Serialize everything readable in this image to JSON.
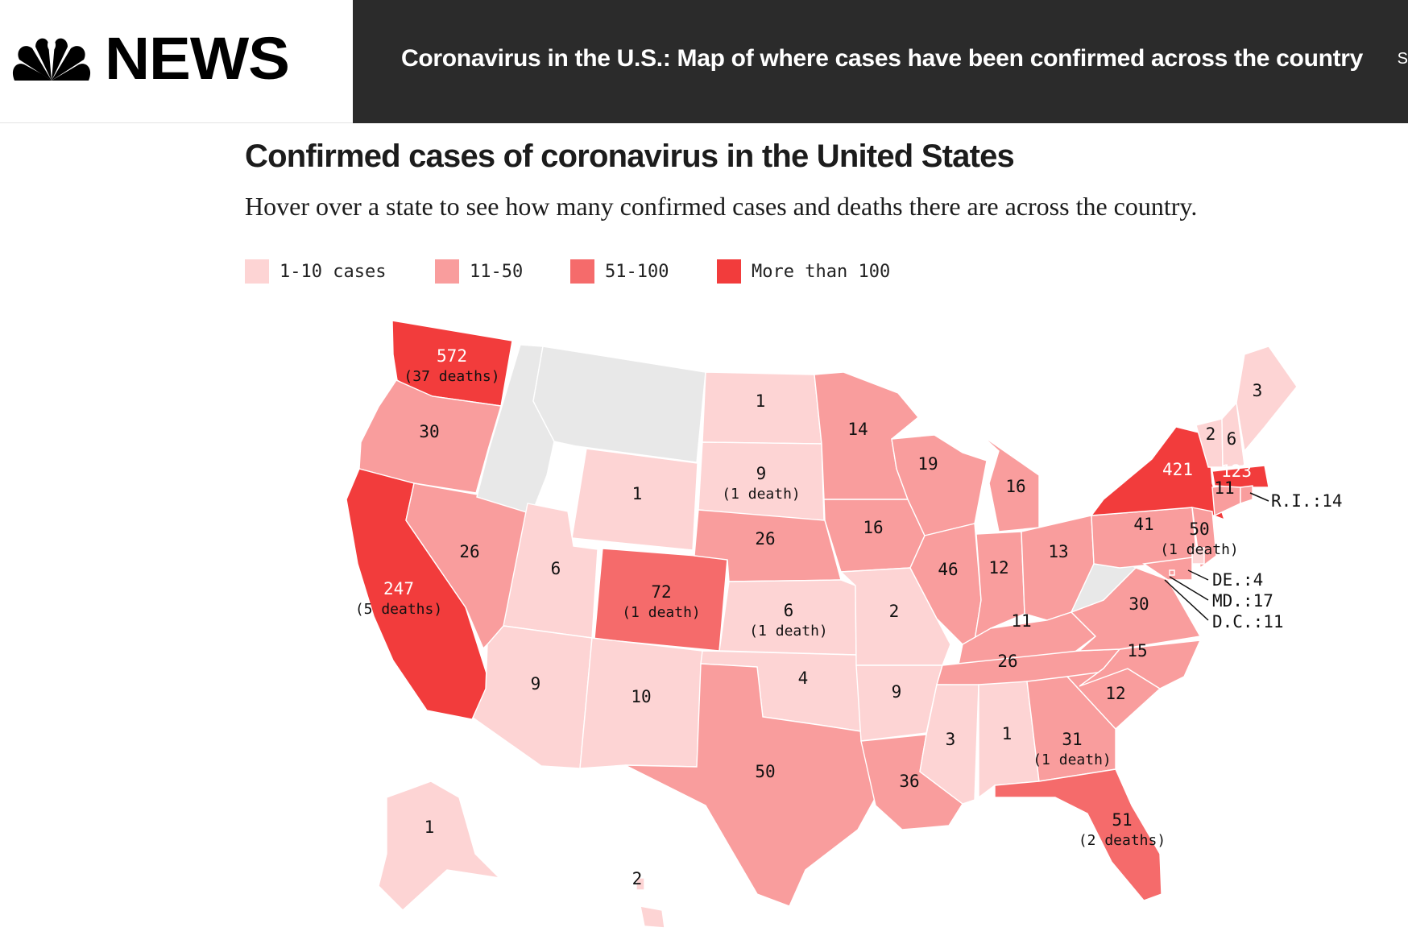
{
  "header": {
    "logo_text": "NEWS",
    "headline": "Coronavirus in the U.S.: Map of where cases have been confirmed across the country",
    "edge_letter": "S"
  },
  "title": "Confirmed cases of coronavirus in the United States",
  "subtitle": "Hover over a state to see how many confirmed cases and deaths there are across the country.",
  "legend": [
    {
      "label": "1-10 cases",
      "color": "#fdd4d4"
    },
    {
      "label": "11-50",
      "color": "#f99d9d"
    },
    {
      "label": "51-100",
      "color": "#f56b6b"
    },
    {
      "label": "More than 100",
      "color": "#f23c3c"
    }
  ],
  "colors": {
    "none": "#e8e8e8",
    "tier1": "#fdd4d4",
    "tier2": "#f99d9d",
    "tier3": "#f56b6b",
    "tier4": "#f23c3c",
    "border": "#ffffff",
    "header_dark": "#2b2b2b"
  },
  "states": [
    {
      "id": "WA",
      "cases": "572",
      "deaths": "(37 deaths)",
      "tier": 4
    },
    {
      "id": "OR",
      "cases": "30",
      "tier": 2
    },
    {
      "id": "CA",
      "cases": "247",
      "deaths": "(5 deaths)",
      "tier": 4
    },
    {
      "id": "NV",
      "cases": "26",
      "tier": 2
    },
    {
      "id": "ID",
      "cases": "",
      "tier": 0
    },
    {
      "id": "MT",
      "cases": "",
      "tier": 0
    },
    {
      "id": "WY",
      "cases": "1",
      "tier": 1
    },
    {
      "id": "UT",
      "cases": "6",
      "tier": 1
    },
    {
      "id": "AZ",
      "cases": "9",
      "tier": 1
    },
    {
      "id": "CO",
      "cases": "72",
      "deaths": "(1 death)",
      "tier": 3
    },
    {
      "id": "NM",
      "cases": "10",
      "tier": 1
    },
    {
      "id": "ND",
      "cases": "1",
      "tier": 1
    },
    {
      "id": "SD",
      "cases": "9",
      "deaths": "(1 death)",
      "tier": 1
    },
    {
      "id": "NE",
      "cases": "26",
      "tier": 2
    },
    {
      "id": "KS",
      "cases": "6",
      "deaths": "(1 death)",
      "tier": 1
    },
    {
      "id": "OK",
      "cases": "4",
      "tier": 1
    },
    {
      "id": "TX",
      "cases": "50",
      "tier": 2
    },
    {
      "id": "MN",
      "cases": "14",
      "tier": 2
    },
    {
      "id": "IA",
      "cases": "16",
      "tier": 2
    },
    {
      "id": "MO",
      "cases": "2",
      "tier": 1
    },
    {
      "id": "AR",
      "cases": "9",
      "tier": 1
    },
    {
      "id": "LA",
      "cases": "36",
      "tier": 2
    },
    {
      "id": "WI",
      "cases": "19",
      "tier": 2
    },
    {
      "id": "IL",
      "cases": "46",
      "tier": 2
    },
    {
      "id": "MI",
      "cases": "16",
      "tier": 2
    },
    {
      "id": "IN",
      "cases": "12",
      "tier": 2
    },
    {
      "id": "OH",
      "cases": "13",
      "tier": 2
    },
    {
      "id": "KY",
      "cases": "11",
      "tier": 2
    },
    {
      "id": "TN",
      "cases": "26",
      "tier": 2
    },
    {
      "id": "MS",
      "cases": "3",
      "tier": 1
    },
    {
      "id": "AL",
      "cases": "1",
      "tier": 1
    },
    {
      "id": "GA",
      "cases": "31",
      "deaths": "(1 death)",
      "tier": 2
    },
    {
      "id": "FL",
      "cases": "51",
      "deaths": "(2 deaths)",
      "tier": 3
    },
    {
      "id": "SC",
      "cases": "12",
      "tier": 2
    },
    {
      "id": "NC",
      "cases": "15",
      "tier": 2
    },
    {
      "id": "VA",
      "cases": "30",
      "tier": 2
    },
    {
      "id": "WV",
      "cases": "",
      "tier": 0
    },
    {
      "id": "PA",
      "cases": "41",
      "tier": 2
    },
    {
      "id": "NY",
      "cases": "421",
      "tier": 4
    },
    {
      "id": "NJ",
      "cases": "50",
      "deaths": "(1 death)",
      "tier": 2
    },
    {
      "id": "CT",
      "cases": "11",
      "tier": 2
    },
    {
      "id": "MA",
      "cases": "123",
      "tier": 4
    },
    {
      "id": "VT",
      "cases": "2",
      "tier": 1
    },
    {
      "id": "NH",
      "cases": "6",
      "tier": 1
    },
    {
      "id": "ME",
      "cases": "3",
      "tier": 1
    },
    {
      "id": "AK",
      "cases": "1",
      "tier": 1
    },
    {
      "id": "HI",
      "cases": "2",
      "tier": 1
    },
    {
      "id": "RI",
      "tier": 2
    },
    {
      "id": "DE",
      "tier": 1
    },
    {
      "id": "MD",
      "tier": 2
    },
    {
      "id": "DC",
      "tier": 2
    }
  ],
  "callouts": [
    {
      "id": "RI",
      "text": "R.I.:14"
    },
    {
      "id": "DE",
      "text": "DE.:4"
    },
    {
      "id": "MD",
      "text": "MD.:17"
    },
    {
      "id": "DC",
      "text": "D.C.:11"
    }
  ]
}
